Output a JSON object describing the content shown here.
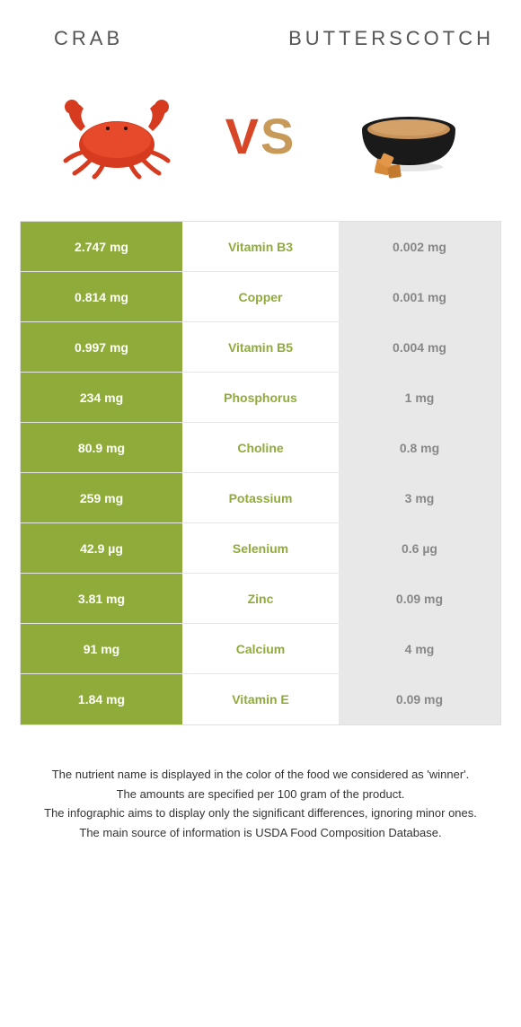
{
  "header": {
    "left": "CRAB",
    "right": "BUTTERSCOTCH"
  },
  "vs": "VS",
  "colors": {
    "crab_winner": "#8fac3a",
    "butter_winner": "#c89a5a",
    "loser": "#e8e8e8",
    "nutrient_crab": "#8fac3a",
    "nutrient_butter": "#c89a5a",
    "loser_text": "#888"
  },
  "rows": [
    {
      "nutrient": "Vitamin B3",
      "crab": "2.747 mg",
      "butter": "0.002 mg",
      "winner": "crab"
    },
    {
      "nutrient": "Copper",
      "crab": "0.814 mg",
      "butter": "0.001 mg",
      "winner": "crab"
    },
    {
      "nutrient": "Vitamin B5",
      "crab": "0.997 mg",
      "butter": "0.004 mg",
      "winner": "crab"
    },
    {
      "nutrient": "Phosphorus",
      "crab": "234 mg",
      "butter": "1 mg",
      "winner": "crab"
    },
    {
      "nutrient": "Choline",
      "crab": "80.9 mg",
      "butter": "0.8 mg",
      "winner": "crab"
    },
    {
      "nutrient": "Potassium",
      "crab": "259 mg",
      "butter": "3 mg",
      "winner": "crab"
    },
    {
      "nutrient": "Selenium",
      "crab": "42.9 µg",
      "butter": "0.6 µg",
      "winner": "crab"
    },
    {
      "nutrient": "Zinc",
      "crab": "3.81 mg",
      "butter": "0.09 mg",
      "winner": "crab"
    },
    {
      "nutrient": "Calcium",
      "crab": "91 mg",
      "butter": "4 mg",
      "winner": "crab"
    },
    {
      "nutrient": "Vitamin E",
      "crab": "1.84 mg",
      "butter": "0.09 mg",
      "winner": "crab"
    }
  ],
  "footnotes": [
    "The nutrient name is displayed in the color of the food we considered as 'winner'.",
    "The amounts are specified per 100 gram of the product.",
    "The infographic aims to display only the significant differences, ignoring minor ones.",
    "The main source of information is USDA Food Composition Database."
  ]
}
